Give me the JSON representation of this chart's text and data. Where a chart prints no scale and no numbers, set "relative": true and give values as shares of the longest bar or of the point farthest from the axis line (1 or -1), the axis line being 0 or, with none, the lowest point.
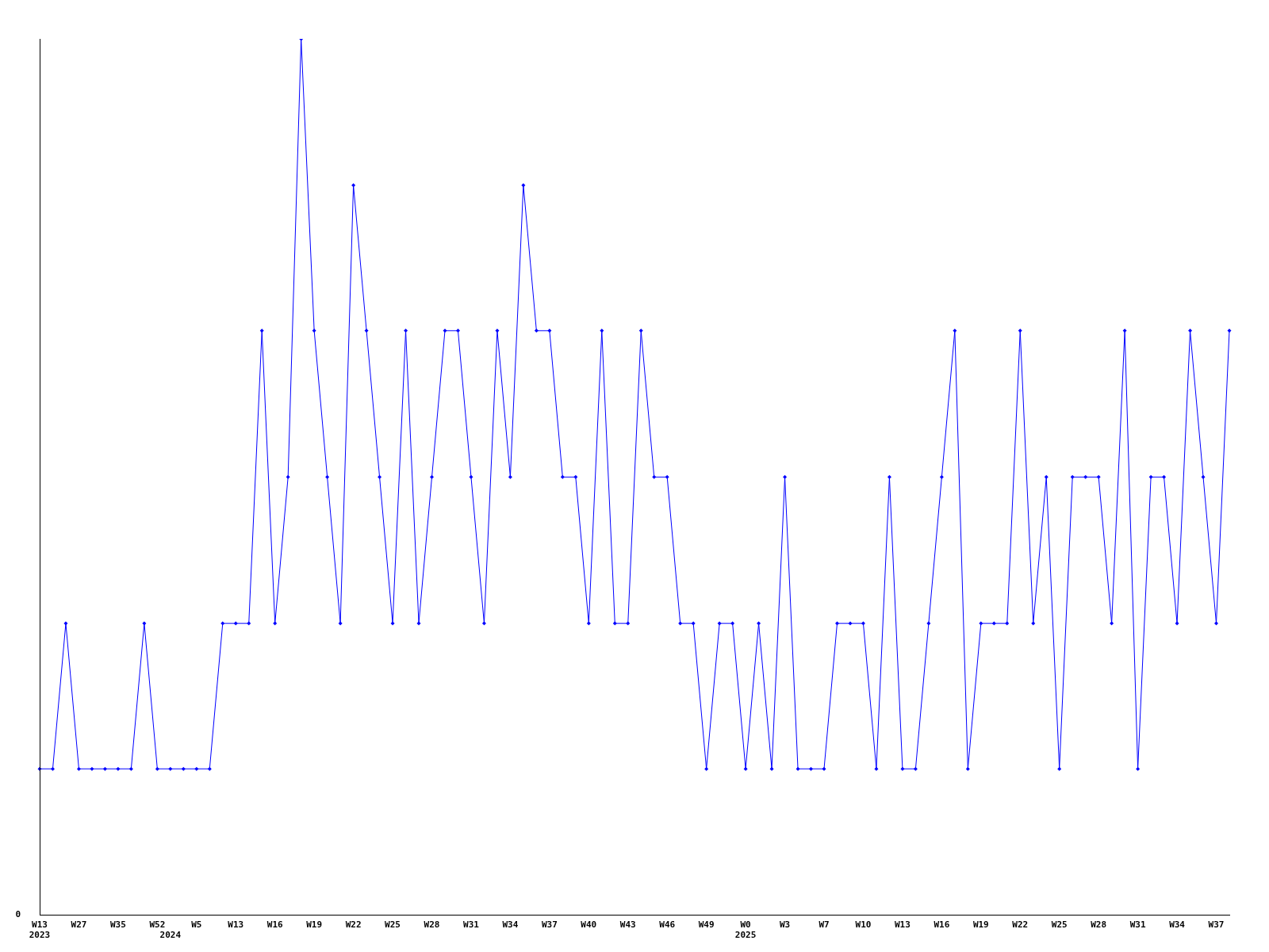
{
  "chart_data": {
    "type": "line",
    "relative": true,
    "grid": false,
    "legend": false,
    "marker": "diamond",
    "line_style": "solid",
    "annotations": [
      "0"
    ],
    "categories": [
      "W13\n2023",
      null,
      null,
      "W27",
      null,
      null,
      "W35",
      null,
      null,
      "W52",
      "\n2024",
      null,
      "W5",
      null,
      null,
      "W13",
      null,
      null,
      "W16",
      null,
      null,
      "W19",
      null,
      null,
      "W22",
      null,
      null,
      "W25",
      null,
      null,
      "W28",
      null,
      null,
      "W31",
      null,
      null,
      "W34",
      null,
      null,
      "W37",
      null,
      null,
      "W40",
      null,
      null,
      "W43",
      null,
      null,
      "W46",
      null,
      null,
      "W49",
      null,
      null,
      "W0\n2025",
      null,
      null,
      "W3",
      null,
      null,
      "W7",
      null,
      null,
      "W10",
      null,
      null,
      "W13",
      null,
      null,
      "W16",
      null,
      null,
      "W19",
      null,
      null,
      "W22",
      null,
      null,
      "W25",
      null,
      null,
      "W28",
      null,
      null,
      "W31",
      null,
      null,
      "W34",
      null,
      null,
      "W37",
      null
    ],
    "series": [
      {
        "color": "#0000ff",
        "values": [
          0.167,
          0.167,
          0.333,
          0.167,
          0.167,
          0.167,
          0.167,
          0.167,
          0.333,
          0.167,
          0.167,
          0.167,
          0.167,
          0.167,
          0.333,
          0.333,
          0.333,
          0.667,
          0.333,
          0.5,
          1,
          0.667,
          0.5,
          0.333,
          0.833,
          0.667,
          0.5,
          0.333,
          0.667,
          0.333,
          0.5,
          0.667,
          0.667,
          0.5,
          0.333,
          0.667,
          0.5,
          0.833,
          0.667,
          0.667,
          0.5,
          0.5,
          0.333,
          0.667,
          0.333,
          0.333,
          0.667,
          0.5,
          0.5,
          0.333,
          0.333,
          0.167,
          0.333,
          0.333,
          0.167,
          0.333,
          0.167,
          0.5,
          0.167,
          0.167,
          0.167,
          0.333,
          0.333,
          0.333,
          0.167,
          0.5,
          0.167,
          0.167,
          0.333,
          0.5,
          0.667,
          0.167,
          0.333,
          0.333,
          0.333,
          0.667,
          0.333,
          0.5,
          0.167,
          0.5,
          0.5,
          0.5,
          0.333,
          0.667,
          0.167,
          0.5,
          0.5,
          0.333,
          0.667,
          0.5,
          0.333,
          0.667
        ]
      }
    ]
  }
}
